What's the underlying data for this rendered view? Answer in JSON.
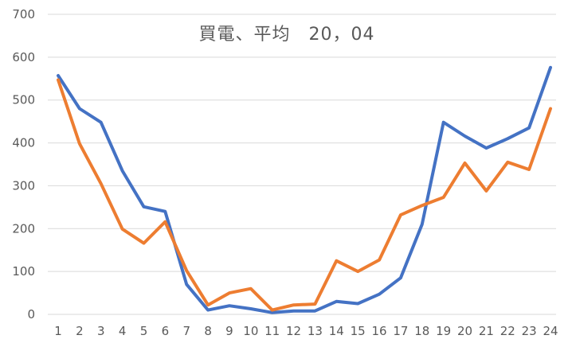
{
  "chart_data": {
    "type": "line",
    "title": "買電、平均　20，04",
    "xlabel": "",
    "ylabel": "",
    "categories": [
      "1",
      "2",
      "3",
      "4",
      "5",
      "6",
      "7",
      "8",
      "9",
      "10",
      "11",
      "12",
      "13",
      "14",
      "15",
      "16",
      "17",
      "18",
      "19",
      "20",
      "21",
      "22",
      "23",
      "24"
    ],
    "series": [
      {
        "color": "#4472C4",
        "values": [
          557,
          480,
          448,
          335,
          251,
          240,
          70,
          10,
          20,
          13,
          4,
          8,
          8,
          30,
          25,
          47,
          85,
          210,
          448,
          416,
          388,
          410,
          435,
          576
        ]
      },
      {
        "color": "#ED7D31",
        "values": [
          547,
          398,
          305,
          199,
          166,
          216,
          102,
          22,
          50,
          60,
          10,
          22,
          24,
          125,
          100,
          127,
          232,
          254,
          273,
          353,
          288,
          355,
          338,
          480
        ]
      }
    ],
    "ylim": [
      0,
      700
    ],
    "yticks": [
      "0",
      "100",
      "200",
      "300",
      "400",
      "500",
      "600",
      "700"
    ],
    "grid": true,
    "gridColor": "#D9D9D9",
    "legend": "none"
  }
}
